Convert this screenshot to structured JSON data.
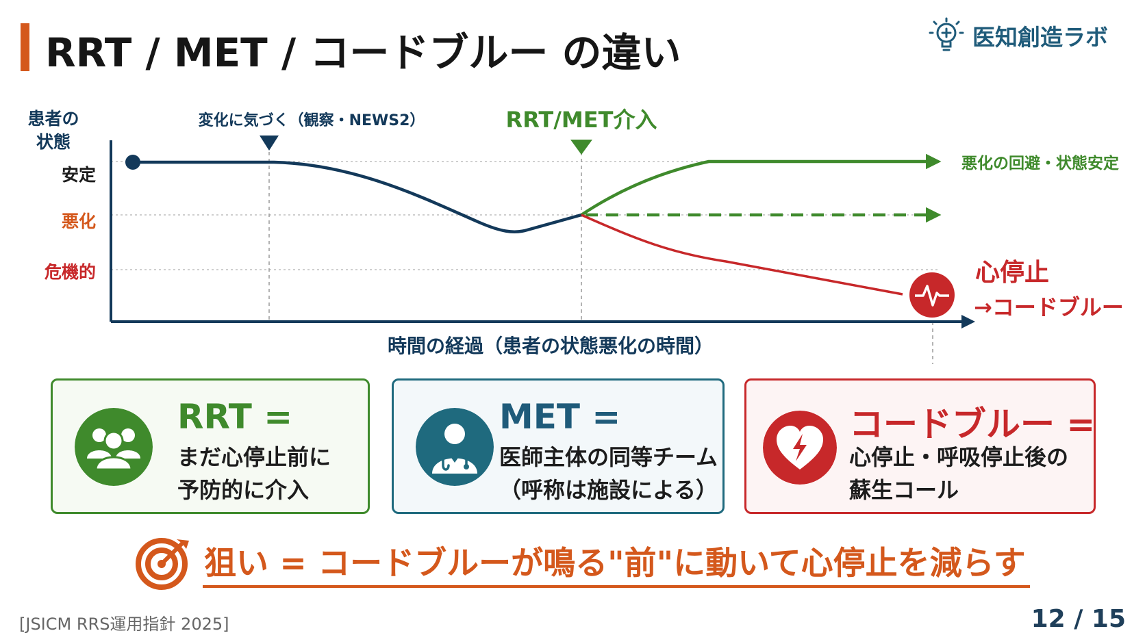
{
  "title": "RRT / MET / コードブルー の違い",
  "brand": {
    "name": "医知創造ラボ",
    "icon": "lightbulb-cross-icon",
    "color": "#1f5b7a"
  },
  "chart": {
    "y_axis_label_line1": "患者の",
    "y_axis_label_line2": "状態",
    "levels": {
      "stable": "安定",
      "worsening": "悪化",
      "critical": "危機的"
    },
    "x_axis_label": "時間の経過（患者の状態悪化の時間）",
    "marker_notice": "変化に気づく（観察・NEWS2）",
    "marker_intervention": "RRT/MET介入",
    "outcome_good": "悪化の回避・状態安定",
    "outcome_bad_line1": "心停止",
    "outcome_bad_line2": "→コードブルー",
    "colors": {
      "patient": "#13395a",
      "good": "#3f8a2c",
      "bad": "#c7282a"
    }
  },
  "cards": {
    "rrt": {
      "head": "RRT =",
      "line1": "まだ心停止前に",
      "line2": "予防的に介入",
      "icon": "team-icon",
      "color": "#3f8a2c"
    },
    "met": {
      "head": "MET =",
      "line1": "医師主体の同等チーム",
      "line2": "（呼称は施設による）",
      "icon": "doctor-icon",
      "color": "#1f6a7e"
    },
    "code": {
      "head": "コードブルー =",
      "line1": "心停止・呼吸停止後の",
      "line2": "蘇生コール",
      "icon": "heart-lightning-icon",
      "color": "#c7282a"
    }
  },
  "goal": {
    "text": "狙い = コードブルーが鳴る\"前\"に動いて心停止を減らす",
    "icon": "target-icon",
    "color": "#d4581c"
  },
  "source": "[JSICM RRS運用指針 2025]",
  "page": "12 / 15"
}
